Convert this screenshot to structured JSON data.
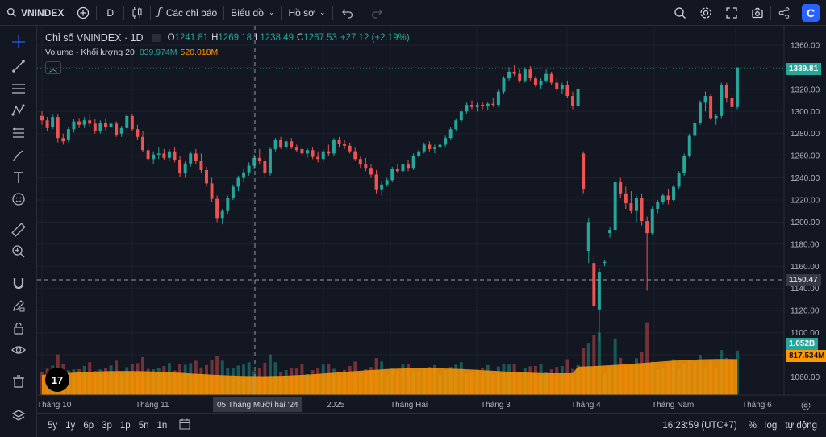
{
  "topbar": {
    "symbol": "VNINDEX",
    "interval": "D",
    "indicators_label": "Các chỉ báo",
    "chart_label": "Biểu đồ",
    "profile_label": "Hồ sơ",
    "logo_letter": "C"
  },
  "legend": {
    "title": "Chỉ số VNINDEX · 1D",
    "o_label": "O",
    "o_value": "1241.81",
    "h_label": "H",
    "h_value": "1269.18",
    "l_label": "L",
    "l_value": "1238.49",
    "c_label": "C",
    "c_value": "1267.53",
    "change": "+27.12 (+2.19%)",
    "volume_label": "Volume - Khối lượng 20",
    "volume_value": "839.974M",
    "volume_ma": "520.018M"
  },
  "price_axis": {
    "ticks": [
      "1360.00",
      "1340.00",
      "1320.00",
      "1300.00",
      "1280.00",
      "1260.00",
      "1240.00",
      "1220.00",
      "1200.00",
      "1180.00",
      "1160.00",
      "1140.00",
      "1120.00",
      "1100.00",
      "1080.00",
      "1060.00"
    ],
    "last_price": "1339.81",
    "crosshair_price": "1150.47",
    "volume_tag": "1.052B",
    "volume_ma_tag": "817.534M"
  },
  "time_axis": {
    "labels": [
      "Tháng 10",
      "Tháng 11",
      "2025",
      "Tháng Hai",
      "Tháng 3",
      "Tháng 4",
      "Tháng Năm",
      "Tháng 6"
    ],
    "crosshair_date": "05 Tháng Mười hai '24"
  },
  "bottombar": {
    "ranges": [
      "5y",
      "1y",
      "6p",
      "3p",
      "1p",
      "5n",
      "1n"
    ],
    "clock": "16:23:59 (UTC+7)",
    "percent_label": "%",
    "log_label": "log",
    "auto_label": "tự động"
  },
  "tv_logo": "17",
  "colors": {
    "up": "#26a69a",
    "down": "#ef5350",
    "volume_ma": "#ff9800",
    "background": "#131722"
  },
  "chart_data": {
    "type": "candlestick",
    "symbol": "VNINDEX",
    "ylim": [
      1050,
      1365
    ],
    "candles": [
      [
        1296,
        1300,
        1288,
        1292
      ],
      [
        1292,
        1295,
        1282,
        1285
      ],
      [
        1286,
        1298,
        1284,
        1295
      ],
      [
        1295,
        1298,
        1272,
        1276
      ],
      [
        1276,
        1280,
        1270,
        1273
      ],
      [
        1274,
        1286,
        1272,
        1284
      ],
      [
        1284,
        1293,
        1281,
        1291
      ],
      [
        1291,
        1294,
        1285,
        1288
      ],
      [
        1288,
        1295,
        1285,
        1292
      ],
      [
        1292,
        1298,
        1286,
        1289
      ],
      [
        1289,
        1293,
        1280,
        1282
      ],
      [
        1282,
        1292,
        1280,
        1290
      ],
      [
        1290,
        1294,
        1283,
        1286
      ],
      [
        1286,
        1291,
        1280,
        1289
      ],
      [
        1289,
        1291,
        1277,
        1279
      ],
      [
        1280,
        1287,
        1277,
        1285
      ],
      [
        1285,
        1298,
        1283,
        1296
      ],
      [
        1296,
        1298,
        1282,
        1284
      ],
      [
        1284,
        1288,
        1274,
        1277
      ],
      [
        1277,
        1282,
        1263,
        1265
      ],
      [
        1265,
        1270,
        1254,
        1257
      ],
      [
        1257,
        1264,
        1252,
        1261
      ],
      [
        1261,
        1268,
        1257,
        1262
      ],
      [
        1262,
        1266,
        1256,
        1258
      ],
      [
        1258,
        1266,
        1255,
        1264
      ],
      [
        1264,
        1268,
        1254,
        1256
      ],
      [
        1256,
        1260,
        1241,
        1244
      ],
      [
        1244,
        1255,
        1240,
        1253
      ],
      [
        1253,
        1264,
        1250,
        1262
      ],
      [
        1262,
        1266,
        1252,
        1255
      ],
      [
        1255,
        1262,
        1244,
        1247
      ],
      [
        1247,
        1250,
        1232,
        1235
      ],
      [
        1235,
        1240,
        1218,
        1221
      ],
      [
        1221,
        1224,
        1200,
        1203
      ],
      [
        1203,
        1212,
        1198,
        1210
      ],
      [
        1210,
        1224,
        1207,
        1222
      ],
      [
        1222,
        1234,
        1220,
        1232
      ],
      [
        1232,
        1242,
        1228,
        1240
      ],
      [
        1240,
        1248,
        1236,
        1245
      ],
      [
        1245,
        1254,
        1242,
        1251
      ],
      [
        1251,
        1261,
        1248,
        1258
      ],
      [
        1258,
        1266,
        1252,
        1255
      ],
      [
        1255,
        1258,
        1240,
        1244
      ],
      [
        1244,
        1268,
        1242,
        1266
      ],
      [
        1266,
        1276,
        1264,
        1274
      ],
      [
        1274,
        1277,
        1266,
        1268
      ],
      [
        1268,
        1276,
        1265,
        1273
      ],
      [
        1273,
        1276,
        1266,
        1268
      ],
      [
        1268,
        1270,
        1263,
        1265
      ],
      [
        1266,
        1269,
        1260,
        1262
      ],
      [
        1262,
        1267,
        1258,
        1265
      ],
      [
        1265,
        1268,
        1257,
        1259
      ],
      [
        1259,
        1264,
        1254,
        1257
      ],
      [
        1257,
        1266,
        1254,
        1264
      ],
      [
        1264,
        1270,
        1260,
        1262
      ],
      [
        1262,
        1276,
        1260,
        1274
      ],
      [
        1274,
        1277,
        1268,
        1271
      ],
      [
        1271,
        1274,
        1266,
        1269
      ],
      [
        1269,
        1272,
        1262,
        1264
      ],
      [
        1264,
        1268,
        1255,
        1257
      ],
      [
        1257,
        1259,
        1249,
        1252
      ],
      [
        1252,
        1258,
        1246,
        1249
      ],
      [
        1249,
        1252,
        1240,
        1243
      ],
      [
        1243,
        1247,
        1226,
        1229
      ],
      [
        1229,
        1237,
        1224,
        1234
      ],
      [
        1234,
        1240,
        1232,
        1238
      ],
      [
        1238,
        1250,
        1236,
        1248
      ],
      [
        1248,
        1252,
        1244,
        1246
      ],
      [
        1246,
        1254,
        1242,
        1252
      ],
      [
        1252,
        1256,
        1246,
        1249
      ],
      [
        1249,
        1262,
        1247,
        1260
      ],
      [
        1260,
        1266,
        1258,
        1264
      ],
      [
        1264,
        1272,
        1262,
        1270
      ],
      [
        1270,
        1273,
        1264,
        1266
      ],
      [
        1266,
        1270,
        1262,
        1268
      ],
      [
        1268,
        1272,
        1264,
        1270
      ],
      [
        1270,
        1278,
        1268,
        1276
      ],
      [
        1276,
        1286,
        1274,
        1284
      ],
      [
        1284,
        1294,
        1282,
        1292
      ],
      [
        1292,
        1302,
        1290,
        1300
      ],
      [
        1300,
        1308,
        1298,
        1306
      ],
      [
        1306,
        1310,
        1302,
        1304
      ],
      [
        1304,
        1308,
        1300,
        1306
      ],
      [
        1306,
        1309,
        1302,
        1305
      ],
      [
        1305,
        1309,
        1301,
        1307
      ],
      [
        1307,
        1312,
        1304,
        1306
      ],
      [
        1306,
        1320,
        1304,
        1318
      ],
      [
        1318,
        1332,
        1316,
        1330
      ],
      [
        1330,
        1340,
        1328,
        1336
      ],
      [
        1336,
        1342,
        1332,
        1334
      ],
      [
        1334,
        1338,
        1326,
        1328
      ],
      [
        1328,
        1340,
        1326,
        1338
      ],
      [
        1338,
        1341,
        1328,
        1330
      ],
      [
        1330,
        1332,
        1322,
        1324
      ],
      [
        1324,
        1330,
        1320,
        1328
      ],
      [
        1328,
        1338,
        1326,
        1334
      ],
      [
        1334,
        1336,
        1324,
        1326
      ],
      [
        1326,
        1330,
        1318,
        1320
      ],
      [
        1320,
        1326,
        1316,
        1324
      ],
      [
        1324,
        1328,
        1312,
        1314
      ],
      [
        1314,
        1318,
        1302,
        1305
      ],
      [
        1305,
        1322,
        1304,
        1320
      ],
      [
        1262,
        1264,
        1226,
        1230
      ],
      [
        1174,
        1204,
        1163,
        1200
      ],
      [
        1163,
        1170,
        1121,
        1124
      ],
      [
        1121,
        1158,
        1092,
        1155
      ],
      [
        1163,
        1166,
        1160,
        1164
      ],
      [
        1190,
        1196,
        1186,
        1193
      ],
      [
        1193,
        1238,
        1190,
        1236
      ],
      [
        1236,
        1240,
        1222,
        1226
      ],
      [
        1226,
        1232,
        1212,
        1217
      ],
      [
        1217,
        1228,
        1208,
        1210
      ],
      [
        1210,
        1224,
        1200,
        1222
      ],
      [
        1222,
        1226,
        1197,
        1201
      ],
      [
        1201,
        1205,
        1138,
        1190
      ],
      [
        1190,
        1214,
        1188,
        1212
      ],
      [
        1212,
        1220,
        1208,
        1218
      ],
      [
        1218,
        1226,
        1216,
        1224
      ],
      [
        1224,
        1230,
        1216,
        1220
      ],
      [
        1220,
        1234,
        1218,
        1232
      ],
      [
        1232,
        1246,
        1230,
        1244
      ],
      [
        1244,
        1262,
        1242,
        1260
      ],
      [
        1260,
        1280,
        1258,
        1278
      ],
      [
        1278,
        1292,
        1276,
        1290
      ],
      [
        1290,
        1310,
        1288,
        1308
      ],
      [
        1308,
        1318,
        1300,
        1314
      ],
      [
        1314,
        1316,
        1292,
        1294
      ],
      [
        1294,
        1298,
        1288,
        1296
      ],
      [
        1296,
        1326,
        1294,
        1324
      ],
      [
        1324,
        1326,
        1308,
        1312
      ],
      [
        1312,
        1316,
        1288,
        1304
      ],
      [
        1304,
        1340,
        1302,
        1339.81
      ]
    ],
    "volume_ma_label": "Volume - Khối lượng 20",
    "last_close": 1339.81,
    "x_labels": [
      "Tháng 10",
      "Tháng 11",
      "2025",
      "Tháng Hai",
      "Tháng 3",
      "Tháng 4",
      "Tháng Năm",
      "Tháng 6"
    ]
  }
}
